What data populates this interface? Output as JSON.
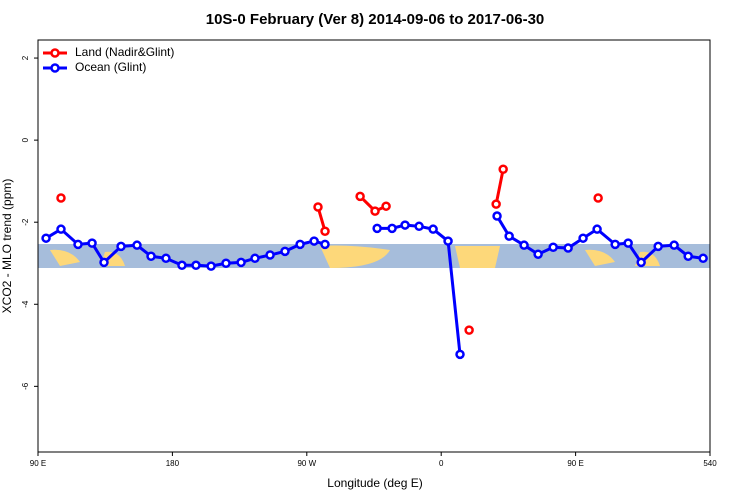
{
  "chart_data": {
    "type": "line",
    "title": "10S-0 February (Ver 8)   2014-09-06 to 2017-06-30",
    "xlabel": "Longitude (deg E)",
    "ylabel": "XCO2 - MLO trend (ppm)",
    "xlim": [
      90,
      540
    ],
    "ylim": [
      -7.6,
      2.44
    ],
    "xticks": [
      {
        "value": 90,
        "label": "90 E"
      },
      180,
      {
        "value": 270,
        "label": "90 W"
      },
      {
        "value": 360,
        "label": "0"
      },
      {
        "value": 450,
        "label": "90 E"
      },
      540
    ],
    "yticks": [
      2,
      0,
      -2,
      -4,
      -6
    ],
    "legend": "top-left",
    "series": [
      {
        "name": "Land (Nadir&Glint)",
        "color": "#ff0000",
        "x": [
          105.4,
          null,
          277.5,
          282.2,
          null,
          305.7,
          315.7,
          323.1,
          null,
          378.7,
          null,
          396.8,
          401.5,
          null,
          465.1
        ],
        "values": [
          -1.41,
          null,
          -1.63,
          -2.22,
          null,
          -1.37,
          -1.73,
          -1.61,
          null,
          -4.63,
          null,
          -1.56,
          -0.71,
          null,
          -1.41
        ]
      },
      {
        "name": "Ocean (Glint)",
        "color": "#0000ff",
        "x": [
          95.4,
          105.4,
          116.8,
          126.2,
          134.2,
          145.6,
          156.3,
          165.7,
          175.7,
          186.4,
          195.8,
          205.9,
          215.9,
          226.0,
          235.3,
          245.4,
          255.4,
          265.5,
          274.9,
          282.2,
          null,
          317.1,
          327.1,
          335.8,
          345.2,
          354.6,
          364.6,
          372.6,
          null,
          397.4,
          405.5,
          415.5,
          424.9,
          435.0,
          445.0,
          455.0,
          464.4,
          476.5,
          485.2,
          493.9,
          505.3,
          516.0,
          525.4,
          535.4
        ],
        "values": [
          -2.39,
          -2.17,
          -2.54,
          -2.51,
          -2.98,
          -2.59,
          -2.56,
          -2.83,
          -2.88,
          -3.05,
          -3.05,
          -3.07,
          -3.0,
          -2.98,
          -2.88,
          -2.8,
          -2.71,
          -2.54,
          -2.46,
          -2.54,
          null,
          -2.15,
          -2.15,
          -2.07,
          -2.1,
          -2.17,
          -2.46,
          -5.22,
          null,
          -1.85,
          -2.34,
          -2.56,
          -2.78,
          -2.61,
          -2.63,
          -2.39,
          -2.17,
          -2.54,
          -2.51,
          -2.98,
          -2.59,
          -2.56,
          -2.83,
          -2.88
        ]
      }
    ]
  }
}
